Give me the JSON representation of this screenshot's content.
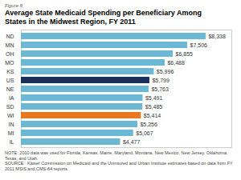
{
  "chart_data": {
    "type": "bar",
    "orientation": "horizontal",
    "title": "Average State Medicaid Spending per Beneficiary Among\nStates in the Midwest Region, FY 2011",
    "annotations": [
      "Figure 6",
      "NOTE: 2010 data was used for Florida, Kansas, Maine, Maryland, Montana, New Mexico, New Jersey, Oklahoma, Texas, and Utah.",
      "SOURCE:  Kaiser Commission on Medicaid and the Uninsured and Urban Institute estimates based on data from FY 2011 MSIS and CMS-64 reports."
    ],
    "categories": [
      "ND",
      "MN",
      "OH",
      "MO",
      "KS",
      "US",
      "NE",
      "IA",
      "SD",
      "WI",
      "IN",
      "MI",
      "IL"
    ],
    "values": [
      8338,
      7506,
      6855,
      6488,
      5996,
      5799,
      5763,
      5491,
      5485,
      5414,
      5256,
      5067,
      4477
    ],
    "value_labels": [
      "$8,338",
      "$7,506",
      "$6,855",
      "$6,488",
      "$5,996",
      "$5,799",
      "$5,763",
      "$5,491",
      "$5,485",
      "$5,414",
      "$5,256",
      "$5,067",
      "$4,477"
    ],
    "colors": [
      "#6bb8d4",
      "#6bb8d4",
      "#6bb8d4",
      "#6bb8d4",
      "#6bb8d4",
      "#1a2e5a",
      "#6bb8d4",
      "#6bb8d4",
      "#6bb8d4",
      "#e87722",
      "#6bb8d4",
      "#6bb8d4",
      "#6bb8d4"
    ],
    "data_labels": true,
    "xlim": [
      0,
      9500
    ],
    "xticks": [],
    "tick_labels": "y",
    "grid": false
  }
}
